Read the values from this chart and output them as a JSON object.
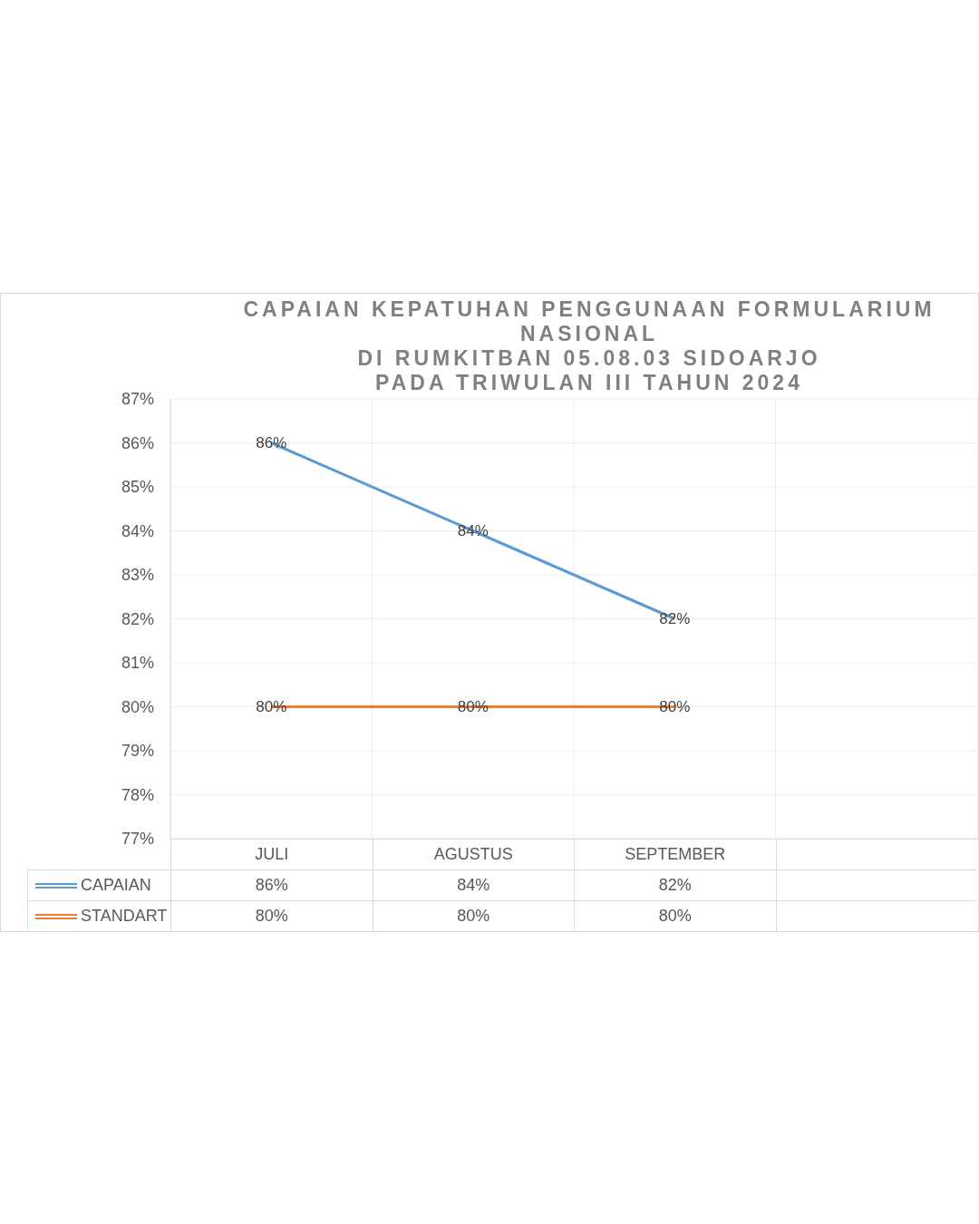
{
  "chart_data": {
    "type": "line",
    "title": "CAPAIAN KEPATUHAN PENGGUNAAN FORMULARIUM NASIONAL\nDI RUMKITBAN 05.08.03 SIDOARJO\nPADA TRIWULAN III TAHUN 2024",
    "categories": [
      "JULI",
      "AGUSTUS",
      "SEPTEMBER",
      null
    ],
    "series": [
      {
        "name": "CAPAIAN",
        "color": "#5b9bd5",
        "values": [
          86,
          84,
          82,
          null
        ],
        "value_labels": [
          "86%",
          "84%",
          "82%",
          null
        ]
      },
      {
        "name": "STANDART",
        "color": "#ed7d31",
        "values": [
          80,
          80,
          80,
          null
        ],
        "value_labels": [
          "80%",
          "80%",
          "80%",
          null
        ]
      }
    ],
    "ylim": [
      77,
      87
    ],
    "yticks": [
      {
        "value": 77,
        "label": "77%"
      },
      {
        "value": 78,
        "label": "78%"
      },
      {
        "value": 79,
        "label": "79%"
      },
      {
        "value": 80,
        "label": "80%"
      },
      {
        "value": 81,
        "label": "81%"
      },
      {
        "value": 82,
        "label": "82%"
      },
      {
        "value": 83,
        "label": "83%"
      },
      {
        "value": 84,
        "label": "84%"
      },
      {
        "value": 85,
        "label": "85%"
      },
      {
        "value": 86,
        "label": "86%"
      },
      {
        "value": 87,
        "label": "87%"
      }
    ],
    "grid": true,
    "legend": "bottom",
    "marker": "none",
    "line_style": "solid"
  }
}
